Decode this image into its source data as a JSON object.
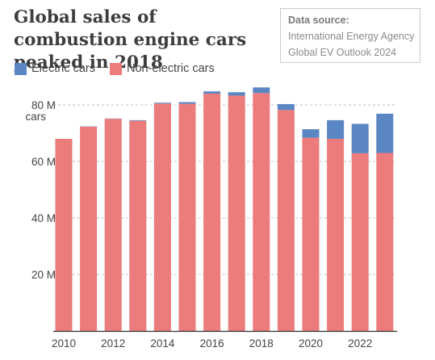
{
  "title": "Global sales of combustion engine cars peaked in 2018",
  "source": {
    "heading": "Data source:",
    "line1": "International Energy Agency",
    "line2": "Global EV Outlook 2024"
  },
  "colors": {
    "electric": "#5b86c4",
    "non_electric": "#ec7b7b",
    "grid": "#bdbdbd",
    "axis": "#333333"
  },
  "chart_data": {
    "type": "bar",
    "stacked": true,
    "title": "Global sales of combustion engine cars peaked in 2018",
    "ylabel_unit": "cars",
    "years": [
      2010,
      2011,
      2012,
      2013,
      2014,
      2015,
      2016,
      2017,
      2018,
      2019,
      2020,
      2021,
      2022,
      2023
    ],
    "x_tick_labels": [
      "2010",
      "2012",
      "2014",
      "2016",
      "2018",
      "2020",
      "2022"
    ],
    "y_ticks": [
      20,
      40,
      60,
      80
    ],
    "y_tick_labels": [
      "20 M",
      "40 M",
      "60 M",
      "80 M"
    ],
    "ylim": [
      0,
      80
    ],
    "grid": true,
    "legend_position": "top-left",
    "series": [
      {
        "name": "Non-electric cars",
        "color": "#ec7b7b",
        "values": [
          68.0,
          72.3,
          75.1,
          74.4,
          80.5,
          80.4,
          84.0,
          83.3,
          84.2,
          78.2,
          68.4,
          68.0,
          62.9,
          63.0
        ]
      },
      {
        "name": "Electric cars",
        "color": "#5b86c4",
        "values": [
          0.0,
          0.1,
          0.1,
          0.2,
          0.3,
          0.6,
          0.8,
          1.2,
          2.0,
          2.1,
          3.0,
          6.6,
          10.4,
          13.9
        ]
      }
    ]
  }
}
